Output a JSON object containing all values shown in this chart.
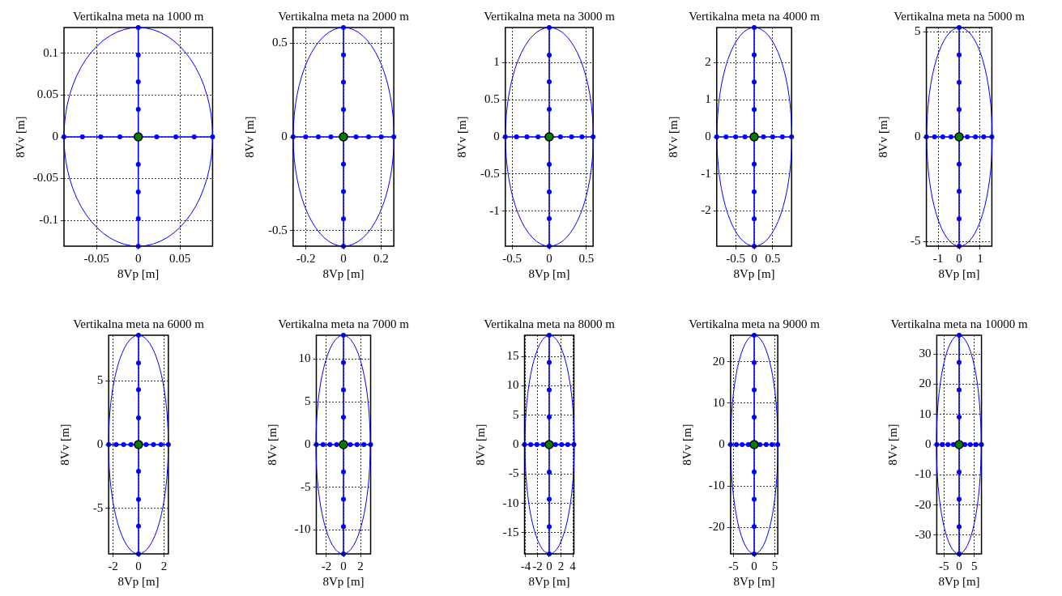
{
  "chart_data": [
    {
      "type": "line",
      "title": "Vertikalna meta na 1000 m",
      "xlabel": "8Vp [m]",
      "ylabel": "8Vv [m]",
      "xlim": [
        -0.089,
        0.089
      ],
      "ylim": [
        -0.131,
        0.131
      ],
      "xticks": [
        -0.05,
        0,
        0.05
      ],
      "yticks": [
        -0.1,
        -0.05,
        0,
        0.05,
        0.1
      ],
      "grid": true,
      "series": [
        {
          "type": "line",
          "color": "#0000ff",
          "marker": "circle",
          "x": [
            -0.089,
            -0.067,
            -0.045,
            -0.022,
            0,
            0.022,
            0.045,
            0.067,
            0.089
          ],
          "values": [
            0,
            0,
            0,
            0,
            0,
            0,
            0,
            0,
            0
          ]
        },
        {
          "type": "line",
          "color": "#0000ff",
          "marker": "circle",
          "x": [
            0,
            0,
            0,
            0,
            0,
            0,
            0,
            0,
            0
          ],
          "values": [
            -0.131,
            -0.098,
            -0.066,
            -0.033,
            0,
            0.033,
            0.066,
            0.098,
            0.131
          ]
        },
        {
          "type": "scatter",
          "color": "#008000",
          "marker": "circle",
          "x": [
            0
          ],
          "values": [
            0
          ]
        }
      ]
    },
    {
      "type": "line",
      "title": "Vertikalna meta na 2000 m",
      "xlabel": "8Vp [m]",
      "ylabel": "8Vv [m]",
      "xlim": [
        -0.268,
        0.268
      ],
      "ylim": [
        -0.582,
        0.582
      ],
      "xticks": [
        -0.2,
        0,
        0.2
      ],
      "yticks": [
        -0.5,
        0,
        0.5
      ],
      "grid": true,
      "series": [
        {
          "type": "line",
          "color": "#0000ff",
          "marker": "circle",
          "x": [
            -0.268,
            -0.201,
            -0.134,
            -0.067,
            0,
            0.067,
            0.134,
            0.201,
            0.268
          ],
          "values": [
            0,
            0,
            0,
            0,
            0,
            0,
            0,
            0,
            0
          ]
        },
        {
          "type": "line",
          "color": "#0000ff",
          "marker": "circle",
          "x": [
            0,
            0,
            0,
            0,
            0,
            0,
            0,
            0,
            0
          ],
          "values": [
            -0.582,
            -0.437,
            -0.291,
            -0.146,
            0,
            0.146,
            0.291,
            0.437,
            0.582
          ]
        },
        {
          "type": "scatter",
          "color": "#008000",
          "marker": "circle",
          "x": [
            0
          ],
          "values": [
            0
          ]
        }
      ]
    },
    {
      "type": "line",
      "title": "Vertikalna meta na 3000 m",
      "xlabel": "8Vp [m]",
      "ylabel": "8Vv [m]",
      "xlim": [
        -0.59,
        0.59
      ],
      "ylim": [
        -1.47,
        1.47
      ],
      "xticks": [
        -0.5,
        0,
        0.5
      ],
      "yticks": [
        -1,
        -0.5,
        0,
        0.5,
        1
      ],
      "grid": true,
      "series": [
        {
          "type": "line",
          "color": "#0000ff",
          "marker": "circle",
          "x": [
            -0.59,
            -0.44,
            -0.3,
            -0.15,
            0,
            0.15,
            0.3,
            0.44,
            0.59
          ],
          "values": [
            0,
            0,
            0,
            0,
            0,
            0,
            0,
            0,
            0
          ]
        },
        {
          "type": "line",
          "color": "#0000ff",
          "marker": "circle",
          "x": [
            0,
            0,
            0,
            0,
            0,
            0,
            0,
            0,
            0
          ],
          "values": [
            -1.47,
            -1.1,
            -0.74,
            -0.37,
            0,
            0.37,
            0.74,
            1.1,
            1.47
          ]
        },
        {
          "type": "scatter",
          "color": "#008000",
          "marker": "circle",
          "x": [
            0
          ],
          "values": [
            0
          ]
        }
      ]
    },
    {
      "type": "line",
      "title": "Vertikalna meta na 4000 m",
      "xlabel": "8Vp [m]",
      "ylabel": "8Vv [m]",
      "xlim": [
        -1.01,
        1.01
      ],
      "ylim": [
        -2.95,
        2.95
      ],
      "xticks": [
        -0.5,
        0,
        0.5
      ],
      "yticks": [
        -2,
        -1,
        0,
        1,
        2
      ],
      "grid": true,
      "series": [
        {
          "type": "line",
          "color": "#0000ff",
          "marker": "circle",
          "x": [
            -1.01,
            -0.76,
            -0.5,
            -0.25,
            0,
            0.25,
            0.5,
            0.76,
            1.01
          ],
          "values": [
            0,
            0,
            0,
            0,
            0,
            0,
            0,
            0,
            0
          ]
        },
        {
          "type": "line",
          "color": "#0000ff",
          "marker": "circle",
          "x": [
            0,
            0,
            0,
            0,
            0,
            0,
            0,
            0,
            0
          ],
          "values": [
            -2.95,
            -2.21,
            -1.48,
            -0.74,
            0,
            0.74,
            1.48,
            2.21,
            2.95
          ]
        },
        {
          "type": "scatter",
          "color": "#008000",
          "marker": "circle",
          "x": [
            0
          ],
          "values": [
            0
          ]
        }
      ]
    },
    {
      "type": "line",
      "title": "Vertikalna meta na 5000 m",
      "xlabel": "8Vp [m]",
      "ylabel": "8Vv [m]",
      "xlim": [
        -1.56,
        1.56
      ],
      "ylim": [
        -5.21,
        5.21
      ],
      "xticks": [
        -1,
        0,
        1
      ],
      "yticks": [
        -5,
        0,
        5
      ],
      "grid": true,
      "series": [
        {
          "type": "line",
          "color": "#0000ff",
          "marker": "circle",
          "x": [
            -1.56,
            -1.17,
            -0.78,
            -0.39,
            0,
            0.39,
            0.78,
            1.17,
            1.56
          ],
          "values": [
            0,
            0,
            0,
            0,
            0,
            0,
            0,
            0,
            0
          ]
        },
        {
          "type": "line",
          "color": "#0000ff",
          "marker": "circle",
          "x": [
            0,
            0,
            0,
            0,
            0,
            0,
            0,
            0,
            0
          ],
          "values": [
            -5.21,
            -3.91,
            -2.6,
            -1.3,
            0,
            1.3,
            2.6,
            3.91,
            5.21
          ]
        },
        {
          "type": "scatter",
          "color": "#008000",
          "marker": "circle",
          "x": [
            0
          ],
          "values": [
            0
          ]
        }
      ]
    },
    {
      "type": "line",
      "title": "Vertikalna meta na 6000 m",
      "xlabel": "8Vp [m]",
      "ylabel": "8Vv [m]",
      "xlim": [
        -2.34,
        2.34
      ],
      "ylim": [
        -8.57,
        8.57
      ],
      "xticks": [
        -2,
        0,
        2
      ],
      "yticks": [
        -5,
        0,
        5
      ],
      "grid": true,
      "series": [
        {
          "type": "line",
          "color": "#0000ff",
          "marker": "circle",
          "x": [
            -2.34,
            -1.76,
            -1.17,
            -0.59,
            0,
            0.59,
            1.17,
            1.76,
            2.34
          ],
          "values": [
            0,
            0,
            0,
            0,
            0,
            0,
            0,
            0,
            0
          ]
        },
        {
          "type": "line",
          "color": "#0000ff",
          "marker": "circle",
          "x": [
            0,
            0,
            0,
            0,
            0,
            0,
            0,
            0,
            0
          ],
          "values": [
            -8.57,
            -6.4,
            -4.3,
            -2.1,
            0,
            2.1,
            4.3,
            6.4,
            8.57
          ]
        },
        {
          "type": "scatter",
          "color": "#008000",
          "marker": "circle",
          "x": [
            0
          ],
          "values": [
            0
          ]
        }
      ]
    },
    {
      "type": "line",
      "title": "Vertikalna meta na 7000 m",
      "xlabel": "8Vp [m]",
      "ylabel": "8Vv [m]",
      "xlim": [
        -3.18,
        3.18
      ],
      "ylim": [
        -12.8,
        12.8
      ],
      "xticks": [
        -2,
        0,
        2
      ],
      "yticks": [
        -10,
        -5,
        0,
        5,
        10
      ],
      "grid": true,
      "series": [
        {
          "type": "line",
          "color": "#0000ff",
          "marker": "circle",
          "x": [
            -3.18,
            -2.39,
            -1.59,
            -0.8,
            0,
            0.8,
            1.59,
            2.39,
            3.18
          ],
          "values": [
            0,
            0,
            0,
            0,
            0,
            0,
            0,
            0,
            0
          ]
        },
        {
          "type": "line",
          "color": "#0000ff",
          "marker": "circle",
          "x": [
            0,
            0,
            0,
            0,
            0,
            0,
            0,
            0,
            0
          ],
          "values": [
            -12.8,
            -9.6,
            -6.4,
            -3.2,
            0,
            3.2,
            6.4,
            9.6,
            12.8
          ]
        },
        {
          "type": "scatter",
          "color": "#008000",
          "marker": "circle",
          "x": [
            0
          ],
          "values": [
            0
          ]
        }
      ]
    },
    {
      "type": "line",
      "title": "Vertikalna meta na 8000 m",
      "xlabel": "8Vp [m]",
      "ylabel": "8Vv [m]",
      "xlim": [
        -4.2,
        4.2
      ],
      "ylim": [
        -18.6,
        18.6
      ],
      "xticks": [
        -4,
        -2,
        0,
        2,
        4
      ],
      "yticks": [
        -15,
        -10,
        -5,
        0,
        5,
        10,
        15
      ],
      "grid": true,
      "series": [
        {
          "type": "line",
          "color": "#0000ff",
          "marker": "circle",
          "x": [
            -4.2,
            -3.15,
            -2.1,
            -1.05,
            0,
            1.05,
            2.1,
            3.15,
            4.2
          ],
          "values": [
            0,
            0,
            0,
            0,
            0,
            0,
            0,
            0,
            0
          ]
        },
        {
          "type": "line",
          "color": "#0000ff",
          "marker": "circle",
          "x": [
            0,
            0,
            0,
            0,
            0,
            0,
            0,
            0,
            0
          ],
          "values": [
            -18.6,
            -14,
            -9.3,
            -4.7,
            0,
            4.7,
            9.3,
            14,
            18.6
          ]
        },
        {
          "type": "scatter",
          "color": "#008000",
          "marker": "circle",
          "x": [
            0
          ],
          "values": [
            0
          ]
        }
      ]
    },
    {
      "type": "line",
      "title": "Vertikalna meta na 9000 m",
      "xlabel": "8Vp [m]",
      "ylabel": "8Vv [m]",
      "xlim": [
        -5.7,
        5.7
      ],
      "ylim": [
        -26.4,
        26.4
      ],
      "xticks": [
        -5,
        0,
        5
      ],
      "yticks": [
        -20,
        -10,
        0,
        10,
        20
      ],
      "grid": true,
      "series": [
        {
          "type": "line",
          "color": "#0000ff",
          "marker": "circle",
          "x": [
            -5.7,
            -4.3,
            -2.9,
            -1.4,
            0,
            1.4,
            2.9,
            4.3,
            5.7
          ],
          "values": [
            0,
            0,
            0,
            0,
            0,
            0,
            0,
            0,
            0
          ]
        },
        {
          "type": "line",
          "color": "#0000ff",
          "marker": "circle",
          "x": [
            0,
            0,
            0,
            0,
            0,
            0,
            0,
            0,
            0
          ],
          "values": [
            -26.4,
            -19.8,
            -13.2,
            -6.6,
            0,
            6.6,
            13.2,
            19.8,
            26.4
          ]
        },
        {
          "type": "scatter",
          "color": "#008000",
          "marker": "circle",
          "x": [
            0
          ],
          "values": [
            0
          ]
        }
      ]
    },
    {
      "type": "line",
      "title": "Vertikalna meta na 10000 m",
      "xlabel": "8Vp [m]",
      "ylabel": "8Vv [m]",
      "xlim": [
        -7.4,
        7.4
      ],
      "ylim": [
        -36.2,
        36.2
      ],
      "xticks": [
        -5,
        0,
        5
      ],
      "yticks": [
        -30,
        -20,
        -10,
        0,
        10,
        20,
        30
      ],
      "grid": true,
      "series": [
        {
          "type": "line",
          "color": "#0000ff",
          "marker": "circle",
          "x": [
            -7.4,
            -5.6,
            -3.7,
            -1.9,
            0,
            1.9,
            3.7,
            5.6,
            7.4
          ],
          "values": [
            0,
            0,
            0,
            0,
            0,
            0,
            0,
            0,
            0
          ]
        },
        {
          "type": "line",
          "color": "#0000ff",
          "marker": "circle",
          "x": [
            0,
            0,
            0,
            0,
            0,
            0,
            0,
            0,
            0
          ],
          "values": [
            -36.2,
            -27.2,
            -18.1,
            -9.1,
            0,
            9.1,
            18.1,
            27.2,
            36.2
          ]
        },
        {
          "type": "scatter",
          "color": "#008000",
          "marker": "circle",
          "x": [
            0
          ],
          "values": [
            0
          ]
        }
      ]
    }
  ]
}
